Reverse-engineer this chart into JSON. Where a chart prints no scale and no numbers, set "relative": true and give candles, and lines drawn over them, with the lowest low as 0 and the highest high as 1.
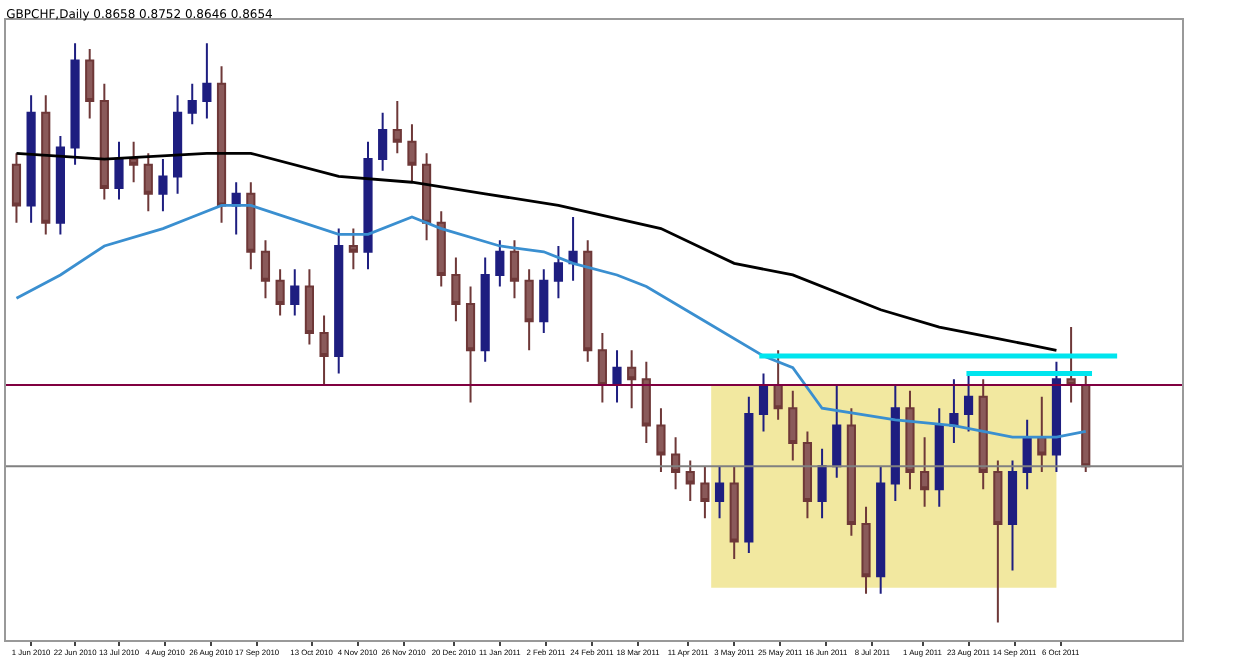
{
  "chart_data": {
    "type": "candlestick",
    "title": "GBPCHF,Daily 0.8658 0.8752 0.8646 0.8654",
    "relative": true,
    "x": [
      "2010-05-25",
      "2010-06-01",
      "2010-06-08",
      "2010-06-15",
      "2010-06-22",
      "2010-06-29",
      "2010-07-06",
      "2010-07-13",
      "2010-07-20",
      "2010-07-27",
      "2010-08-03",
      "2010-08-10",
      "2010-08-17",
      "2010-08-24",
      "2010-08-31",
      "2010-09-07",
      "2010-09-14",
      "2010-09-21",
      "2010-09-28",
      "2010-10-05",
      "2010-10-12",
      "2010-10-19",
      "2010-10-26",
      "2010-11-02",
      "2010-11-09",
      "2010-11-16",
      "2010-11-23",
      "2010-11-30",
      "2010-12-07",
      "2010-12-14",
      "2010-12-21",
      "2010-12-28",
      "2011-01-04",
      "2011-01-11",
      "2011-01-18",
      "2011-01-25",
      "2011-02-01",
      "2011-02-08",
      "2011-02-15",
      "2011-02-22",
      "2011-03-01",
      "2011-03-08",
      "2011-03-15",
      "2011-03-22",
      "2011-03-29",
      "2011-04-05",
      "2011-04-12",
      "2011-04-19",
      "2011-04-26",
      "2011-05-03",
      "2011-05-10",
      "2011-05-17",
      "2011-05-24",
      "2011-05-31",
      "2011-06-07",
      "2011-06-14",
      "2011-06-21",
      "2011-06-28",
      "2011-07-05",
      "2011-07-12",
      "2011-07-19",
      "2011-07-26",
      "2011-08-02",
      "2011-08-09",
      "2011-08-16",
      "2011-08-23",
      "2011-08-30",
      "2011-09-06",
      "2011-09-13",
      "2011-09-20",
      "2011-09-27",
      "2011-10-04",
      "2011-10-11",
      "2011-10-18"
    ],
    "ohlc": [
      [
        0.79,
        0.81,
        0.69,
        0.72
      ],
      [
        0.72,
        0.91,
        0.69,
        0.88
      ],
      [
        0.88,
        0.91,
        0.67,
        0.69
      ],
      [
        0.69,
        0.84,
        0.67,
        0.82
      ],
      [
        0.82,
        1,
        0.79,
        0.97
      ],
      [
        0.97,
        0.99,
        0.87,
        0.9
      ],
      [
        0.9,
        0.93,
        0.73,
        0.75
      ],
      [
        0.75,
        0.83,
        0.73,
        0.8
      ],
      [
        0.8,
        0.83,
        0.76,
        0.79
      ],
      [
        0.79,
        0.81,
        0.71,
        0.74
      ],
      [
        0.74,
        0.8,
        0.71,
        0.77
      ],
      [
        0.77,
        0.91,
        0.74,
        0.88
      ],
      [
        0.88,
        0.93,
        0.86,
        0.9
      ],
      [
        0.9,
        1,
        0.87,
        0.93
      ],
      [
        0.93,
        0.96,
        0.69,
        0.72
      ],
      [
        0.72,
        0.76,
        0.67,
        0.74
      ],
      [
        0.74,
        0.76,
        0.61,
        0.64
      ],
      [
        0.64,
        0.66,
        0.56,
        0.59
      ],
      [
        0.59,
        0.61,
        0.53,
        0.55
      ],
      [
        0.55,
        0.61,
        0.53,
        0.58
      ],
      [
        0.58,
        0.61,
        0.48,
        0.5
      ],
      [
        0.5,
        0.53,
        0.41,
        0.46
      ],
      [
        0.46,
        0.68,
        0.43,
        0.65
      ],
      [
        0.65,
        0.68,
        0.61,
        0.64
      ],
      [
        0.64,
        0.83,
        0.61,
        0.8
      ],
      [
        0.8,
        0.88,
        0.78,
        0.85
      ],
      [
        0.85,
        0.9,
        0.81,
        0.83
      ],
      [
        0.83,
        0.86,
        0.76,
        0.79
      ],
      [
        0.79,
        0.81,
        0.66,
        0.69
      ],
      [
        0.69,
        0.71,
        0.58,
        0.6
      ],
      [
        0.6,
        0.63,
        0.52,
        0.55
      ],
      [
        0.55,
        0.58,
        0.38,
        0.47
      ],
      [
        0.47,
        0.63,
        0.45,
        0.6
      ],
      [
        0.6,
        0.66,
        0.58,
        0.64
      ],
      [
        0.64,
        0.66,
        0.56,
        0.59
      ],
      [
        0.59,
        0.61,
        0.47,
        0.52
      ],
      [
        0.52,
        0.61,
        0.5,
        0.59
      ],
      [
        0.59,
        0.65,
        0.56,
        0.62
      ],
      [
        0.62,
        0.7,
        0.59,
        0.64
      ],
      [
        0.64,
        0.66,
        0.45,
        0.47
      ],
      [
        0.47,
        0.5,
        0.38,
        0.41
      ],
      [
        0.41,
        0.47,
        0.38,
        0.44
      ],
      [
        0.44,
        0.47,
        0.37,
        0.42
      ],
      [
        0.42,
        0.45,
        0.31,
        0.34
      ],
      [
        0.34,
        0.37,
        0.26,
        0.29
      ],
      [
        0.29,
        0.32,
        0.23,
        0.26
      ],
      [
        0.26,
        0.28,
        0.21,
        0.24
      ],
      [
        0.24,
        0.27,
        0.18,
        0.21
      ],
      [
        0.21,
        0.27,
        0.18,
        0.24
      ],
      [
        0.24,
        0.27,
        0.11,
        0.14
      ],
      [
        0.14,
        0.39,
        0.12,
        0.36
      ],
      [
        0.36,
        0.43,
        0.33,
        0.41
      ],
      [
        0.41,
        0.47,
        0.35,
        0.37
      ],
      [
        0.37,
        0.4,
        0.28,
        0.31
      ],
      [
        0.31,
        0.33,
        0.18,
        0.21
      ],
      [
        0.21,
        0.3,
        0.18,
        0.27
      ],
      [
        0.27,
        0.41,
        0.25,
        0.34
      ],
      [
        0.34,
        0.37,
        0.15,
        0.17
      ],
      [
        0.17,
        0.2,
        0.05,
        0.08
      ],
      [
        0.08,
        0.27,
        0.05,
        0.24
      ],
      [
        0.24,
        0.41,
        0.21,
        0.37
      ],
      [
        0.37,
        0.4,
        0.23,
        0.26
      ],
      [
        0.26,
        0.32,
        0.2,
        0.23
      ],
      [
        0.23,
        0.37,
        0.2,
        0.34
      ],
      [
        0.34,
        0.42,
        0.31,
        0.36
      ],
      [
        0.36,
        0.43,
        0.33,
        0.39
      ],
      [
        0.39,
        0.42,
        0.23,
        0.26
      ],
      [
        0.26,
        0.28,
        0,
        0.17
      ],
      [
        0.17,
        0.28,
        0.09,
        0.26
      ],
      [
        0.26,
        0.35,
        0.23,
        0.32
      ],
      [
        0.32,
        0.39,
        0.26,
        0.29
      ],
      [
        0.29,
        0.45,
        0.26,
        0.42
      ],
      [
        0.42,
        0.51,
        0.38,
        0.41
      ],
      [
        0.41,
        0.43,
        0.26,
        0.27
      ]
    ],
    "series": [
      {
        "type": "area",
        "color": "#f2e8a0",
        "x": [
          "2011-04-22",
          "2011-10-04"
        ],
        "values": [
          null,
          null
        ],
        "lower": [
          0.06,
          0.06
        ],
        "upper": [
          0.41,
          0.41
        ]
      },
      {
        "type": "line",
        "color": "#000000",
        "x": [
          "2010-05-25",
          "2010-07-06",
          "2010-08-24",
          "2010-09-14",
          "2010-10-26",
          "2010-11-30",
          "2011-01-04",
          "2011-02-08",
          "2011-03-29",
          "2011-05-03",
          "2011-05-31",
          "2011-07-12",
          "2011-08-09",
          "2011-09-06",
          "2011-09-20",
          "2011-10-04"
        ],
        "values": [
          0.81,
          0.8,
          0.81,
          0.81,
          0.77,
          0.76,
          0.74,
          0.72,
          0.68,
          0.62,
          0.6,
          0.54,
          0.51,
          0.49,
          0.48,
          0.47
        ]
      },
      {
        "type": "line",
        "color": "#3a8fd0",
        "x": [
          "2010-05-25",
          "2010-06-15",
          "2010-07-06",
          "2010-08-03",
          "2010-08-17",
          "2010-08-31",
          "2010-09-14",
          "2010-10-26",
          "2010-11-09",
          "2010-11-30",
          "2010-12-14",
          "2011-01-11",
          "2011-02-01",
          "2011-02-15",
          "2011-03-08",
          "2011-03-22",
          "2011-04-19",
          "2011-05-17",
          "2011-05-31",
          "2011-06-14",
          "2011-07-19",
          "2011-08-16",
          "2011-09-13",
          "2011-10-04",
          "2011-10-18"
        ],
        "values": [
          0.56,
          0.6,
          0.65,
          0.68,
          0.7,
          0.72,
          0.72,
          0.67,
          0.67,
          0.7,
          0.68,
          0.65,
          0.64,
          0.62,
          0.6,
          0.58,
          0.52,
          0.46,
          0.44,
          0.37,
          0.35,
          0.34,
          0.32,
          0.32,
          0.33
        ]
      },
      {
        "type": "line",
        "color": "#00e5ee",
        "x": [
          "2011-05-15",
          "2011-11-02"
        ],
        "values": [
          0.46,
          0.46
        ]
      },
      {
        "type": "line",
        "color": "#00e5ee",
        "x": [
          "2011-08-22",
          "2011-10-21"
        ],
        "values": [
          0.43,
          0.43
        ]
      }
    ],
    "ref_lines": [
      {
        "axis": "y",
        "value": 0.41,
        "color": "#800040"
      },
      {
        "axis": "y",
        "value": 0.27,
        "color": "#808080"
      }
    ],
    "xlim": [
      "2010-05-20",
      "2011-12-03"
    ],
    "xticks": [
      {
        "value": "2010-06-01",
        "label": "1 Jun 2010"
      },
      {
        "value": "2010-06-22",
        "label": "22 Jun 2010"
      },
      {
        "value": "2010-07-13",
        "label": "13 Jul 2010"
      },
      {
        "value": "2010-08-04",
        "label": "4 Aug 2010"
      },
      {
        "value": "2010-08-26",
        "label": "26 Aug 2010"
      },
      {
        "value": "2010-09-17",
        "label": "17 Sep 2010"
      },
      {
        "value": "2010-10-13",
        "label": "13 Oct 2010"
      },
      {
        "value": "2010-11-04",
        "label": "4 Nov 2010"
      },
      {
        "value": "2010-11-26",
        "label": "26 Nov 2010"
      },
      {
        "value": "2010-12-20",
        "label": "20 Dec 2010"
      },
      {
        "value": "2011-01-11",
        "label": "11 Jan 2011"
      },
      {
        "value": "2011-02-02",
        "label": "2 Feb 2011"
      },
      {
        "value": "2011-02-24",
        "label": "24 Feb 2011"
      },
      {
        "value": "2011-03-18",
        "label": "18 Mar 2011"
      },
      {
        "value": "2011-04-11",
        "label": "11 Apr 2011"
      },
      {
        "value": "2011-05-03",
        "label": "3 May 2011"
      },
      {
        "value": "2011-05-25",
        "label": "25 May 2011"
      },
      {
        "value": "2011-06-16",
        "label": "16 Jun 2011"
      },
      {
        "value": "2011-07-08",
        "label": "8 Jul 2011"
      },
      {
        "value": "2011-08-01",
        "label": "1 Aug 2011"
      },
      {
        "value": "2011-08-23",
        "label": "23 Aug 2011"
      },
      {
        "value": "2011-09-14",
        "label": "14 Sep 2011"
      },
      {
        "value": "2011-10-06",
        "label": "6 Oct 2011"
      }
    ]
  }
}
